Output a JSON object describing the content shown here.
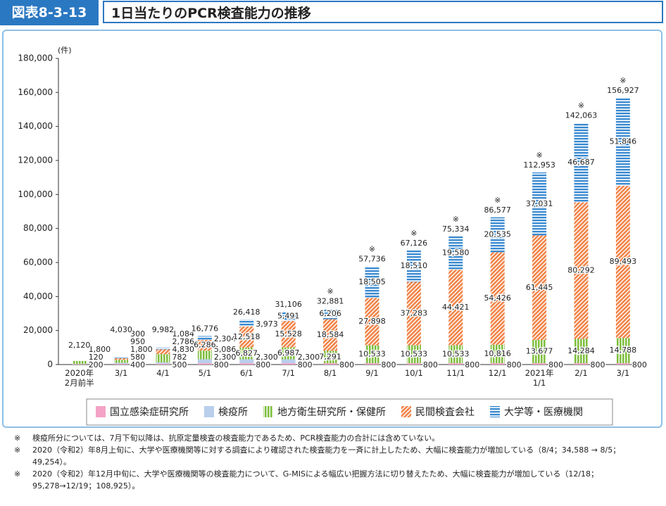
{
  "header": {
    "code": "図表8-3-13",
    "title": "1日当たりのPCR検査能力の推移"
  },
  "chart_data": {
    "type": "bar",
    "stacked": true,
    "y_label": "(件)",
    "categories": [
      "2020年\n2月前半",
      "3/1",
      "4/1",
      "5/1",
      "6/1",
      "7/1",
      "8/1",
      "9/1",
      "10/1",
      "11/1",
      "12/1",
      "2021年\n1/1",
      "2/1",
      "3/1"
    ],
    "ylim": [
      0,
      180000
    ],
    "yticks": [
      0,
      {
        "value": 20000,
        "label": "20,000"
      },
      {
        "value": 40000,
        "label": "40,000"
      },
      {
        "value": 60000,
        "label": "60,000"
      },
      {
        "value": 80000,
        "label": "80,000"
      },
      {
        "value": 100000,
        "label": "100,000"
      },
      {
        "value": 120000,
        "label": "120,000"
      },
      {
        "value": 140000,
        "label": "140,000"
      },
      {
        "value": 160000,
        "label": "160,000"
      },
      {
        "value": 180000,
        "label": "180,000"
      }
    ],
    "series": [
      {
        "name": "国立感染症研究所",
        "color": "#f4a3c6",
        "pattern": "solid",
        "values": [
          200,
          400,
          500,
          800,
          800,
          800,
          800,
          800,
          800,
          800,
          800,
          800,
          800,
          800
        ],
        "value_labels": [
          "200",
          "400",
          "500",
          "800",
          "800",
          "800",
          "800",
          "800",
          "800",
          "800",
          "800",
          "800",
          "800",
          "800"
        ]
      },
      {
        "name": "検疫所",
        "color": "#b9cfec",
        "pattern": "solid",
        "values": [
          120,
          580,
          782,
          2300,
          2300,
          2300,
          null,
          null,
          null,
          null,
          null,
          null,
          null,
          null
        ],
        "value_labels": [
          "120",
          "580",
          "782",
          "2,300",
          "2,300",
          "2,300",
          null,
          null,
          null,
          null,
          null,
          null,
          null,
          null
        ]
      },
      {
        "name": "地方衛生研究所・保健所",
        "color": "#7fbf3f",
        "pattern": "vertical",
        "values": [
          1800,
          1800,
          4830,
          5086,
          6827,
          6987,
          7291,
          10533,
          10533,
          10533,
          10816,
          13677,
          14284,
          14788
        ],
        "value_labels": [
          "1,800",
          "1,800",
          "4,830",
          "5,086",
          "6,827",
          "6,987",
          "7,291",
          "10,533",
          "10,533",
          "10,533",
          "10,816",
          "13,677",
          "14,284",
          "14,788"
        ]
      },
      {
        "name": "民間検査会社",
        "color": "#f08448",
        "pattern": "diagonal",
        "values": [
          null,
          950,
          2786,
          6286,
          12518,
          15528,
          18584,
          27898,
          37283,
          44421,
          54426,
          61445,
          80292,
          89493
        ],
        "value_labels": [
          null,
          "950",
          "2,786",
          "6,286",
          "12,518",
          "15,528",
          "18,584",
          "27,898",
          "37,283",
          "44,421",
          "54,426",
          "61,445",
          "80,292",
          "89,493"
        ]
      },
      {
        "name": "大学等・医療機関",
        "color": "#3a8ad0",
        "pattern": "horizontal",
        "values": [
          null,
          300,
          1084,
          2304,
          3973,
          5491,
          6206,
          18505,
          18510,
          19580,
          20535,
          37031,
          46687,
          51846
        ],
        "value_labels": [
          null,
          "300",
          "1,084",
          "2,304",
          "3,973",
          "5,491",
          "6,206",
          "18,505",
          "18,510",
          "19,580",
          "20,535",
          "37,031",
          "46,687",
          "51,846"
        ]
      }
    ],
    "totals": {
      "values": [
        2120,
        4030,
        9982,
        16776,
        26418,
        31106,
        32881,
        57736,
        67126,
        75334,
        86577,
        112953,
        142063,
        156927
      ],
      "value_labels": [
        "2,120",
        "4,030",
        "9,982",
        "16,776",
        "26,418",
        "31,106",
        "32,881",
        "57,736",
        "67,126",
        "75,334",
        "86,577",
        "112,953",
        "142,063",
        "156,927"
      ],
      "marks": [
        null,
        null,
        null,
        null,
        null,
        null,
        "※",
        "※",
        "※",
        "※",
        "※",
        "※",
        "※",
        "※"
      ]
    },
    "legend": "bottom"
  },
  "notes": [
    {
      "mark": "※",
      "text": "検疫所分については、7月下旬以降は、抗原定量検査の検査能力であるため、PCR検査能力の合計には含めていない。"
    },
    {
      "mark": "※",
      "text": "2020（令和2）年8月上旬に、大学や医療機関等に対する調査により確認された検査能力を一斉に計上したため、大幅に検査能力が増加している（8/4；34,588 → 8/5；49,254）。"
    },
    {
      "mark": "※",
      "text": "2020（令和2）年12月中旬に、大学や医療機関等の検査能力について、G-MISによる幅広い把握方法に切り替えたため、大幅に検査能力が増加している（12/18；95,278→12/19；108,925）。"
    }
  ]
}
